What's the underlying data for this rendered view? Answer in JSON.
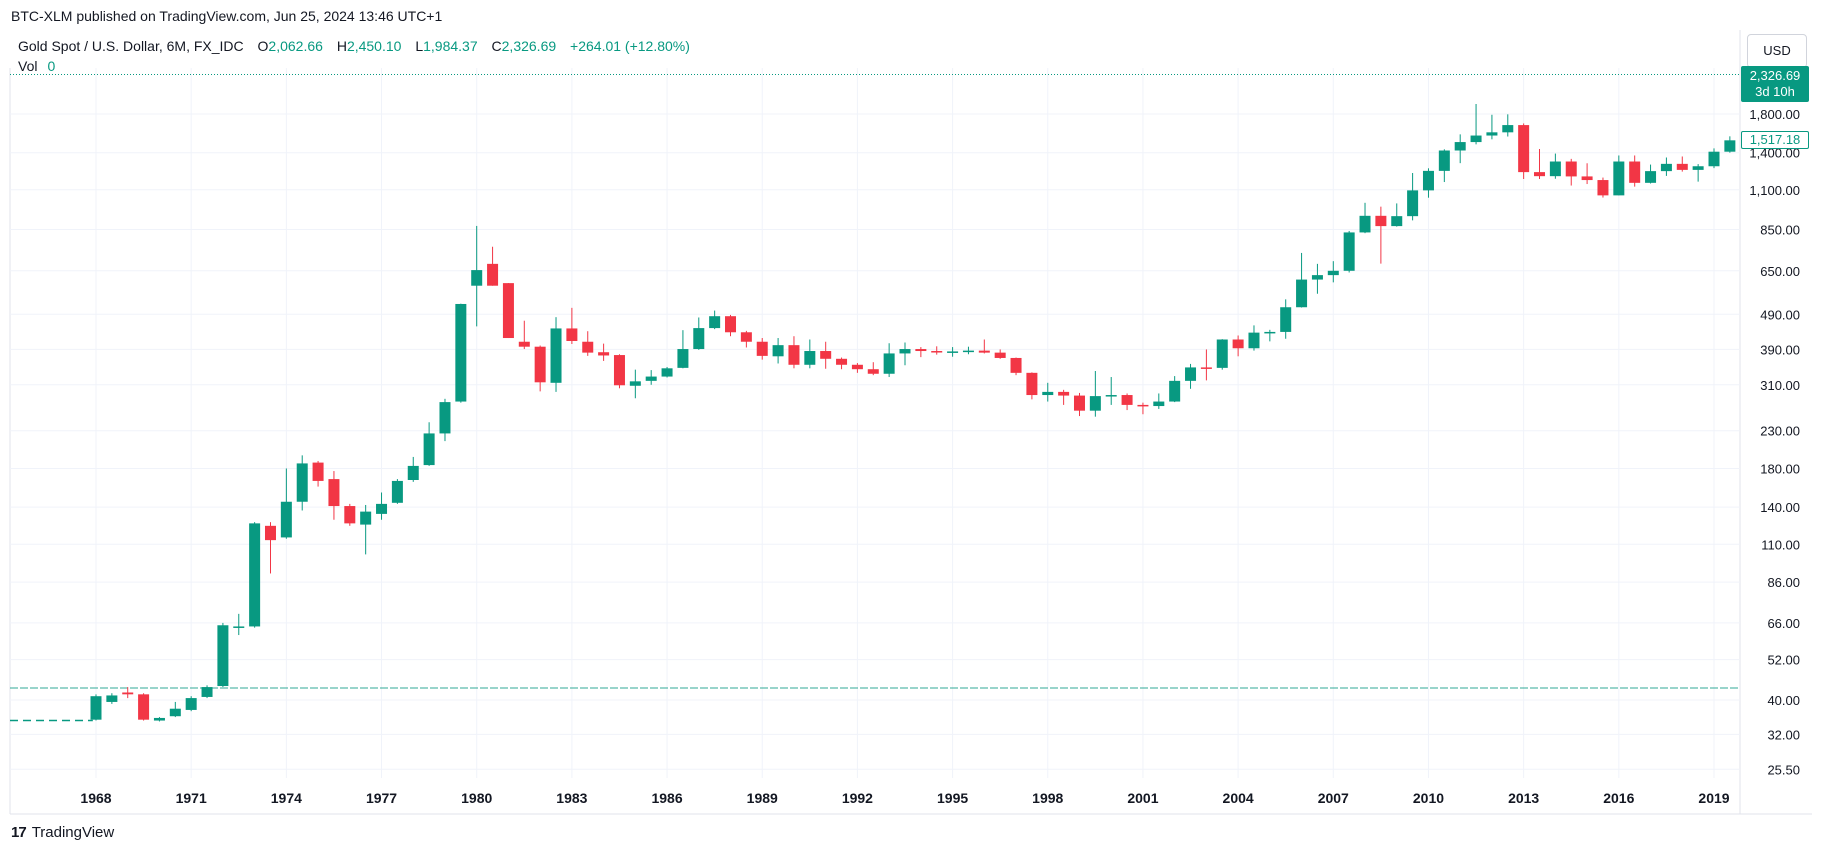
{
  "header": {
    "published": "BTC-XLM published on TradingView.com, Jun 25, 2024 13:46 UTC+1",
    "symbol_desc": "Gold Spot / U.S. Dollar, 6M, FX_IDC",
    "o_key": "O",
    "o_val": "2,062.66",
    "h_key": "H",
    "h_val": "2,450.10",
    "l_key": "L",
    "l_val": "1,984.37",
    "c_key": "C",
    "c_val": "2,326.69",
    "change": "+264.01 (+12.80%)",
    "vol_label": "Vol",
    "vol_val": "0"
  },
  "currency_button": "USD",
  "badges": {
    "last_price": "2,326.69",
    "countdown": "3d 10h",
    "ma_value": "1,517.18"
  },
  "footer": {
    "brand": "TradingView",
    "logo": "17"
  },
  "colors": {
    "up": "#089981",
    "down": "#f23645",
    "grid": "#f0f3fa",
    "text": "#131722"
  },
  "chart_data": {
    "type": "candlestick",
    "scale": "log",
    "ylim": [
      24,
      2500
    ],
    "y_ticks": [
      {
        "value": 1800,
        "label": "1,800.00"
      },
      {
        "value": 1400,
        "label": "1,400.00"
      },
      {
        "value": 1100,
        "label": "1,100.00"
      },
      {
        "value": 850,
        "label": "850.00"
      },
      {
        "value": 650,
        "label": "650.00"
      },
      {
        "value": 490,
        "label": "490.00"
      },
      {
        "value": 390,
        "label": "390.00"
      },
      {
        "value": 310,
        "label": "310.00"
      },
      {
        "value": 230,
        "label": "230.00"
      },
      {
        "value": 180,
        "label": "180.00"
      },
      {
        "value": 140,
        "label": "140.00"
      },
      {
        "value": 110,
        "label": "110.00"
      },
      {
        "value": 86,
        "label": "86.00"
      },
      {
        "value": 66,
        "label": "66.00"
      },
      {
        "value": 52,
        "label": "52.00"
      },
      {
        "value": 40,
        "label": "40.00"
      },
      {
        "value": 32,
        "label": "32.00"
      },
      {
        "value": 25.5,
        "label": "25.50"
      }
    ],
    "x_ticks": [
      {
        "year": 1968,
        "label": "1968"
      },
      {
        "year": 1971,
        "label": "1971"
      },
      {
        "year": 1974,
        "label": "1974"
      },
      {
        "year": 1977,
        "label": "1977"
      },
      {
        "year": 1980,
        "label": "1980"
      },
      {
        "year": 1983,
        "label": "1983"
      },
      {
        "year": 1986,
        "label": "1986"
      },
      {
        "year": 1989,
        "label": "1989"
      },
      {
        "year": 1992,
        "label": "1992"
      },
      {
        "year": 1995,
        "label": "1995"
      },
      {
        "year": 1998,
        "label": "1998"
      },
      {
        "year": 2001,
        "label": "2001"
      },
      {
        "year": 2004,
        "label": "2004"
      },
      {
        "year": 2007,
        "label": "2007"
      },
      {
        "year": 2010,
        "label": "2010"
      },
      {
        "year": 2013,
        "label": "2013"
      },
      {
        "year": 2016,
        "label": "2016"
      },
      {
        "year": 2019,
        "label": "2019"
      }
    ],
    "flat_line_before": {
      "from": 1965.0,
      "to": 1967.9,
      "value": 35
    },
    "last_price_line": 2326.69,
    "volume_line_value": 0,
    "candles": [
      {
        "t": 1968.0,
        "o": 35.2,
        "h": 41.5,
        "l": 35.0,
        "c": 41.0
      },
      {
        "t": 1968.5,
        "o": 39.5,
        "h": 41.8,
        "l": 39.0,
        "c": 41.2
      },
      {
        "t": 1969.0,
        "o": 42.0,
        "h": 43.5,
        "l": 40.5,
        "c": 41.5
      },
      {
        "t": 1969.5,
        "o": 41.5,
        "h": 41.8,
        "l": 35.0,
        "c": 35.2
      },
      {
        "t": 1970.0,
        "o": 35.0,
        "h": 35.8,
        "l": 34.8,
        "c": 35.6
      },
      {
        "t": 1970.5,
        "o": 36.0,
        "h": 39.5,
        "l": 35.8,
        "c": 37.8
      },
      {
        "t": 1971.0,
        "o": 37.5,
        "h": 41.0,
        "l": 37.2,
        "c": 40.5
      },
      {
        "t": 1971.5,
        "o": 40.8,
        "h": 44.0,
        "l": 40.5,
        "c": 43.5
      },
      {
        "t": 1972.0,
        "o": 43.8,
        "h": 66.0,
        "l": 43.5,
        "c": 65.0
      },
      {
        "t": 1972.5,
        "o": 64.0,
        "h": 70.0,
        "l": 61.0,
        "c": 64.5
      },
      {
        "t": 1973.0,
        "o": 64.5,
        "h": 127.0,
        "l": 64.0,
        "c": 126.0
      },
      {
        "t": 1973.5,
        "o": 124.0,
        "h": 127.0,
        "l": 91.0,
        "c": 113.0
      },
      {
        "t": 1974.0,
        "o": 115.0,
        "h": 180.0,
        "l": 114.0,
        "c": 145.0
      },
      {
        "t": 1974.5,
        "o": 145.0,
        "h": 196.0,
        "l": 137.0,
        "c": 186.0
      },
      {
        "t": 1975.0,
        "o": 187.0,
        "h": 189.0,
        "l": 160.0,
        "c": 166.0
      },
      {
        "t": 1975.5,
        "o": 168.0,
        "h": 177.0,
        "l": 129.0,
        "c": 141.0
      },
      {
        "t": 1976.0,
        "o": 141.0,
        "h": 143.0,
        "l": 124.0,
        "c": 126.0
      },
      {
        "t": 1976.5,
        "o": 125.0,
        "h": 142.0,
        "l": 103.0,
        "c": 136.0
      },
      {
        "t": 1977.0,
        "o": 134.0,
        "h": 154.0,
        "l": 129.0,
        "c": 143.0
      },
      {
        "t": 1977.5,
        "o": 144.0,
        "h": 168.0,
        "l": 143.0,
        "c": 166.0
      },
      {
        "t": 1978.0,
        "o": 167.0,
        "h": 194.0,
        "l": 165.0,
        "c": 183.0
      },
      {
        "t": 1978.5,
        "o": 184.0,
        "h": 243.0,
        "l": 183.0,
        "c": 226.0
      },
      {
        "t": 1979.0,
        "o": 226.0,
        "h": 283.0,
        "l": 215.0,
        "c": 277.0
      },
      {
        "t": 1979.5,
        "o": 278.0,
        "h": 525.0,
        "l": 276.0,
        "c": 524.0
      },
      {
        "t": 1980.0,
        "o": 590.0,
        "h": 870.0,
        "l": 453.0,
        "c": 653.0
      },
      {
        "t": 1980.5,
        "o": 680.0,
        "h": 760.0,
        "l": 590.0,
        "c": 590.0
      },
      {
        "t": 1981.0,
        "o": 600.0,
        "h": 600.0,
        "l": 420.0,
        "c": 420.0
      },
      {
        "t": 1981.5,
        "o": 410.0,
        "h": 470.0,
        "l": 391.0,
        "c": 397.0
      },
      {
        "t": 1982.0,
        "o": 397.0,
        "h": 400.0,
        "l": 297.0,
        "c": 315.0
      },
      {
        "t": 1982.5,
        "o": 314.0,
        "h": 481.0,
        "l": 296.0,
        "c": 447.0
      },
      {
        "t": 1983.0,
        "o": 447.0,
        "h": 511.0,
        "l": 404.0,
        "c": 412.0
      },
      {
        "t": 1983.5,
        "o": 410.0,
        "h": 439.0,
        "l": 374.0,
        "c": 382.0
      },
      {
        "t": 1984.0,
        "o": 383.0,
        "h": 405.0,
        "l": 362.0,
        "c": 375.0
      },
      {
        "t": 1984.5,
        "o": 376.0,
        "h": 378.0,
        "l": 303.0,
        "c": 309.0
      },
      {
        "t": 1985.0,
        "o": 308.0,
        "h": 342.0,
        "l": 284.0,
        "c": 317.0
      },
      {
        "t": 1985.5,
        "o": 318.0,
        "h": 341.0,
        "l": 310.0,
        "c": 327.0
      },
      {
        "t": 1986.0,
        "o": 327.0,
        "h": 348.0,
        "l": 325.0,
        "c": 345.0
      },
      {
        "t": 1986.5,
        "o": 346.0,
        "h": 442.0,
        "l": 345.0,
        "c": 391.0
      },
      {
        "t": 1987.0,
        "o": 391.0,
        "h": 480.0,
        "l": 389.0,
        "c": 448.0
      },
      {
        "t": 1987.5,
        "o": 448.0,
        "h": 502.0,
        "l": 445.0,
        "c": 484.0
      },
      {
        "t": 1988.0,
        "o": 484.0,
        "h": 488.0,
        "l": 425.0,
        "c": 436.0
      },
      {
        "t": 1988.5,
        "o": 436.0,
        "h": 440.0,
        "l": 395.0,
        "c": 410.0
      },
      {
        "t": 1989.0,
        "o": 410.0,
        "h": 420.0,
        "l": 365.0,
        "c": 374.0
      },
      {
        "t": 1989.5,
        "o": 373.0,
        "h": 420.0,
        "l": 356.0,
        "c": 401.0
      },
      {
        "t": 1990.0,
        "o": 401.0,
        "h": 425.0,
        "l": 345.0,
        "c": 353.0
      },
      {
        "t": 1990.5,
        "o": 353.0,
        "h": 416.0,
        "l": 345.0,
        "c": 386.0
      },
      {
        "t": 1991.0,
        "o": 386.0,
        "h": 410.0,
        "l": 344.0,
        "c": 367.0
      },
      {
        "t": 1991.5,
        "o": 367.0,
        "h": 370.0,
        "l": 343.0,
        "c": 353.0
      },
      {
        "t": 1992.0,
        "o": 353.0,
        "h": 357.0,
        "l": 335.0,
        "c": 343.0
      },
      {
        "t": 1992.5,
        "o": 343.0,
        "h": 359.0,
        "l": 330.0,
        "c": 333.0
      },
      {
        "t": 1993.0,
        "o": 333.0,
        "h": 406.0,
        "l": 326.0,
        "c": 380.0
      },
      {
        "t": 1993.5,
        "o": 380.0,
        "h": 408.0,
        "l": 352.0,
        "c": 391.0
      },
      {
        "t": 1994.0,
        "o": 391.0,
        "h": 396.0,
        "l": 371.0,
        "c": 386.0
      },
      {
        "t": 1994.5,
        "o": 386.0,
        "h": 398.0,
        "l": 377.0,
        "c": 383.0
      },
      {
        "t": 1995.0,
        "o": 383.0,
        "h": 396.0,
        "l": 372.0,
        "c": 385.0
      },
      {
        "t": 1995.5,
        "o": 385.0,
        "h": 397.0,
        "l": 378.0,
        "c": 387.0
      },
      {
        "t": 1996.0,
        "o": 387.0,
        "h": 416.0,
        "l": 380.0,
        "c": 382.0
      },
      {
        "t": 1996.5,
        "o": 382.0,
        "h": 390.0,
        "l": 367.0,
        "c": 369.0
      },
      {
        "t": 1997.0,
        "o": 369.0,
        "h": 370.0,
        "l": 330.0,
        "c": 335.0
      },
      {
        "t": 1997.5,
        "o": 335.0,
        "h": 336.0,
        "l": 282.0,
        "c": 290.0
      },
      {
        "t": 1998.0,
        "o": 290.0,
        "h": 314.0,
        "l": 278.0,
        "c": 296.0
      },
      {
        "t": 1998.5,
        "o": 296.0,
        "h": 300.0,
        "l": 272.0,
        "c": 289.0
      },
      {
        "t": 1999.0,
        "o": 289.0,
        "h": 294.0,
        "l": 253.0,
        "c": 262.0
      },
      {
        "t": 1999.5,
        "o": 262.0,
        "h": 339.0,
        "l": 252.0,
        "c": 288.0
      },
      {
        "t": 2000.0,
        "o": 288.0,
        "h": 326.0,
        "l": 272.0,
        "c": 290.0
      },
      {
        "t": 2000.5,
        "o": 290.0,
        "h": 293.0,
        "l": 263.0,
        "c": 272.0
      },
      {
        "t": 2001.0,
        "o": 272.0,
        "h": 276.0,
        "l": 256.0,
        "c": 270.0
      },
      {
        "t": 2001.5,
        "o": 270.0,
        "h": 293.0,
        "l": 265.0,
        "c": 278.0
      },
      {
        "t": 2002.0,
        "o": 278.0,
        "h": 328.0,
        "l": 277.0,
        "c": 318.0
      },
      {
        "t": 2002.5,
        "o": 318.0,
        "h": 355.0,
        "l": 302.0,
        "c": 347.0
      },
      {
        "t": 2003.0,
        "o": 347.0,
        "h": 390.0,
        "l": 319.0,
        "c": 346.0
      },
      {
        "t": 2003.5,
        "o": 346.0,
        "h": 417.0,
        "l": 342.0,
        "c": 416.0
      },
      {
        "t": 2004.0,
        "o": 416.0,
        "h": 427.0,
        "l": 373.0,
        "c": 393.0
      },
      {
        "t": 2004.5,
        "o": 393.0,
        "h": 456.0,
        "l": 387.0,
        "c": 435.0
      },
      {
        "t": 2005.0,
        "o": 435.0,
        "h": 443.0,
        "l": 411.0,
        "c": 437.0
      },
      {
        "t": 2005.5,
        "o": 437.0,
        "h": 540.0,
        "l": 418.0,
        "c": 513.0
      },
      {
        "t": 2006.0,
        "o": 513.0,
        "h": 730.0,
        "l": 512.0,
        "c": 614.0
      },
      {
        "t": 2006.5,
        "o": 614.0,
        "h": 680.0,
        "l": 560.0,
        "c": 632.0
      },
      {
        "t": 2007.0,
        "o": 632.0,
        "h": 692.0,
        "l": 603.0,
        "c": 650.0
      },
      {
        "t": 2007.5,
        "o": 650.0,
        "h": 842.0,
        "l": 643.0,
        "c": 834.0
      },
      {
        "t": 2008.0,
        "o": 834.0,
        "h": 1011.0,
        "l": 830.0,
        "c": 929.0
      },
      {
        "t": 2008.5,
        "o": 929.0,
        "h": 986.0,
        "l": 681.0,
        "c": 869.0
      },
      {
        "t": 2009.0,
        "o": 869.0,
        "h": 1007.0,
        "l": 866.0,
        "c": 927.0
      },
      {
        "t": 2009.5,
        "o": 927.0,
        "h": 1227.0,
        "l": 902.0,
        "c": 1096.0
      },
      {
        "t": 2010.0,
        "o": 1096.0,
        "h": 1265.0,
        "l": 1045.0,
        "c": 1244.0
      },
      {
        "t": 2010.5,
        "o": 1244.0,
        "h": 1431.0,
        "l": 1157.0,
        "c": 1420.0
      },
      {
        "t": 2011.0,
        "o": 1420.0,
        "h": 1577.0,
        "l": 1308.0,
        "c": 1500.0
      },
      {
        "t": 2011.5,
        "o": 1500.0,
        "h": 1921.0,
        "l": 1478.0,
        "c": 1565.0
      },
      {
        "t": 2012.0,
        "o": 1565.0,
        "h": 1791.0,
        "l": 1527.0,
        "c": 1598.0
      },
      {
        "t": 2012.5,
        "o": 1598.0,
        "h": 1796.0,
        "l": 1555.0,
        "c": 1675.0
      },
      {
        "t": 2013.0,
        "o": 1675.0,
        "h": 1693.0,
        "l": 1180.0,
        "c": 1234.0
      },
      {
        "t": 2013.5,
        "o": 1234.0,
        "h": 1434.0,
        "l": 1180.0,
        "c": 1202.0
      },
      {
        "t": 2014.0,
        "o": 1202.0,
        "h": 1392.0,
        "l": 1182.0,
        "c": 1322.0
      },
      {
        "t": 2014.5,
        "o": 1322.0,
        "h": 1345.0,
        "l": 1131.0,
        "c": 1200.0
      },
      {
        "t": 2015.0,
        "o": 1200.0,
        "h": 1307.0,
        "l": 1142.0,
        "c": 1172.0
      },
      {
        "t": 2015.5,
        "o": 1172.0,
        "h": 1191.0,
        "l": 1046.0,
        "c": 1061.0
      },
      {
        "t": 2016.0,
        "o": 1061.0,
        "h": 1375.0,
        "l": 1061.0,
        "c": 1322.0
      },
      {
        "t": 2016.5,
        "o": 1322.0,
        "h": 1375.0,
        "l": 1123.0,
        "c": 1151.0
      },
      {
        "t": 2017.0,
        "o": 1151.0,
        "h": 1296.0,
        "l": 1146.0,
        "c": 1242.0
      },
      {
        "t": 2017.5,
        "o": 1242.0,
        "h": 1357.0,
        "l": 1204.0,
        "c": 1302.0
      },
      {
        "t": 2018.0,
        "o": 1302.0,
        "h": 1366.0,
        "l": 1238.0,
        "c": 1252.0
      },
      {
        "t": 2018.5,
        "o": 1252.0,
        "h": 1300.0,
        "l": 1160.0,
        "c": 1282.0
      },
      {
        "t": 2019.0,
        "o": 1282.0,
        "h": 1440.0,
        "l": 1266.0,
        "c": 1409.0
      },
      {
        "t": 2019.5,
        "o": 1409.0,
        "h": 1557.0,
        "l": 1400.0,
        "c": 1517.0
      }
    ]
  }
}
